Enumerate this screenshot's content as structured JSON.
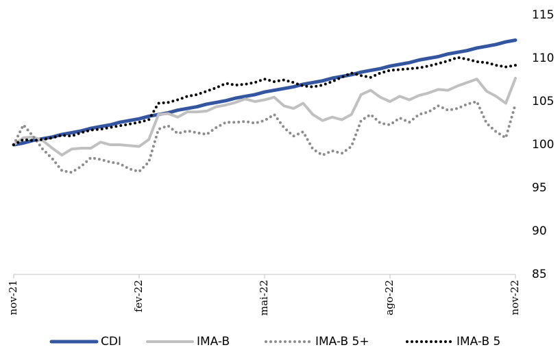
{
  "chart_data": {
    "type": "line",
    "categories": [
      "nov-21",
      null,
      null,
      null,
      null,
      null,
      null,
      null,
      null,
      null,
      null,
      null,
      null,
      "fev-22",
      null,
      null,
      null,
      null,
      null,
      null,
      null,
      null,
      null,
      null,
      null,
      null,
      "mai-22",
      null,
      null,
      null,
      null,
      null,
      null,
      null,
      null,
      null,
      null,
      null,
      null,
      "ago-22",
      null,
      null,
      null,
      null,
      null,
      null,
      null,
      null,
      null,
      null,
      null,
      null,
      "nov-22"
    ],
    "series": [
      {
        "name": "CDI",
        "color": "#3455a0",
        "style": "solid",
        "values": [
          100.0,
          100.2,
          100.5,
          100.7,
          100.9,
          101.2,
          101.4,
          101.6,
          101.9,
          102.1,
          102.3,
          102.6,
          102.8,
          103.0,
          103.3,
          103.5,
          103.7,
          104.0,
          104.2,
          104.4,
          104.7,
          104.9,
          105.1,
          105.4,
          105.6,
          105.8,
          106.1,
          106.3,
          106.5,
          106.7,
          107.0,
          107.2,
          107.4,
          107.7,
          107.9,
          108.1,
          108.4,
          108.6,
          108.8,
          109.1,
          109.3,
          109.5,
          109.8,
          110.0,
          110.2,
          110.5,
          110.7,
          110.9,
          111.2,
          111.4,
          111.6,
          111.9,
          112.1
        ]
      },
      {
        "name": "IMA-B",
        "color": "#c0c0c0",
        "style": "solid",
        "values": [
          100.0,
          100.8,
          100.9,
          100.5,
          99.6,
          98.8,
          99.5,
          99.6,
          99.6,
          100.3,
          100.0,
          100.0,
          99.9,
          99.8,
          100.6,
          103.5,
          103.6,
          103.2,
          103.8,
          103.8,
          103.9,
          104.4,
          104.6,
          104.9,
          105.3,
          105.0,
          105.2,
          105.5,
          104.5,
          104.2,
          104.8,
          103.5,
          102.8,
          103.2,
          102.9,
          103.5,
          105.8,
          106.3,
          105.5,
          105.0,
          105.6,
          105.2,
          105.7,
          106.0,
          106.4,
          106.3,
          106.8,
          107.2,
          107.6,
          106.2,
          105.6,
          104.8,
          107.7
        ]
      },
      {
        "name": "IMA-B 5+",
        "color": "#8c8c8c",
        "style": "dotted",
        "values": [
          100.0,
          102.3,
          101.0,
          99.5,
          98.4,
          97.0,
          96.8,
          97.5,
          98.5,
          98.3,
          98.0,
          97.8,
          97.2,
          96.9,
          98.0,
          101.8,
          102.2,
          101.3,
          101.6,
          101.4,
          101.2,
          102.0,
          102.6,
          102.6,
          102.7,
          102.5,
          102.8,
          103.5,
          102.0,
          101.0,
          101.5,
          99.5,
          98.8,
          99.3,
          99.0,
          99.8,
          102.8,
          103.5,
          102.5,
          102.3,
          103.1,
          102.6,
          103.5,
          103.8,
          104.5,
          104.0,
          104.2,
          104.7,
          105.0,
          102.5,
          101.5,
          100.8,
          104.7
        ]
      },
      {
        "name": "IMA-B 5",
        "color": "#000000",
        "style": "dotted",
        "values": [
          100.0,
          100.6,
          100.5,
          100.6,
          100.8,
          101.1,
          101.0,
          101.4,
          101.7,
          101.8,
          102.0,
          102.2,
          102.4,
          102.6,
          102.9,
          104.8,
          104.9,
          105.2,
          105.6,
          105.8,
          106.2,
          106.6,
          107.1,
          106.9,
          107.0,
          107.2,
          107.6,
          107.3,
          107.5,
          107.2,
          106.8,
          106.7,
          106.9,
          107.3,
          107.8,
          108.3,
          108.0,
          107.8,
          108.3,
          108.6,
          108.7,
          108.8,
          108.9,
          109.1,
          109.4,
          109.7,
          110.1,
          109.9,
          109.6,
          109.5,
          109.2,
          109.0,
          109.2
        ]
      }
    ],
    "ylim": [
      85,
      115
    ],
    "yticks": [
      85,
      90,
      95,
      100,
      105,
      110,
      115
    ],
    "grid": false,
    "legend": "bottom"
  }
}
